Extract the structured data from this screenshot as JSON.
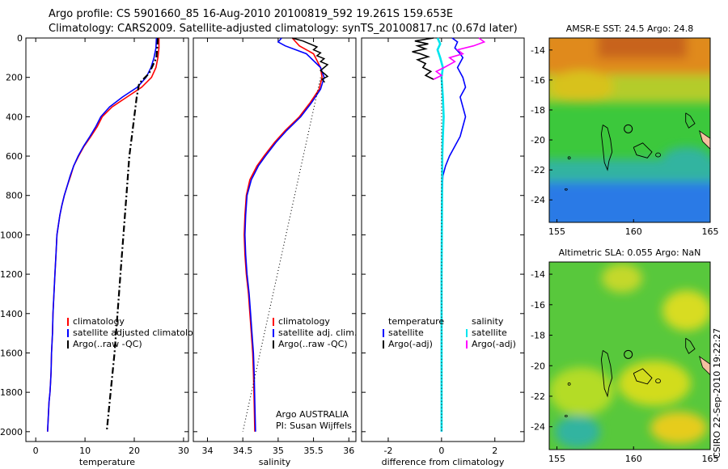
{
  "title": {
    "line1": "Argo profile: CS 5901660_85 16-Aug-2010 20100819_592 19.261S 159.653E",
    "line2": "Climatology: CARS2009. Satellite-adjusted climatology: synTS_20100817.nc (0.67d later)"
  },
  "footer": "CSIRO 22-Sep-2010 19:22:27",
  "colors": {
    "climatology": "#ff0000",
    "satellite": "#0000ff",
    "argo": "#000000",
    "sal_satellite": "#00e5ee",
    "sal_argo": "#ff00ff"
  },
  "chart_data": [
    {
      "type": "line",
      "panel": "temperature",
      "xlabel": "temperature",
      "ylabel": "",
      "xlim": [
        -2,
        31
      ],
      "ylim": [
        2050,
        0
      ],
      "xticks": [
        0,
        10,
        20,
        30
      ],
      "yticks": [
        0,
        200,
        400,
        600,
        800,
        1000,
        1200,
        1400,
        1600,
        1800,
        2000
      ],
      "legend": {
        "placement": "lower-right",
        "entries": [
          "climatology",
          "satellite adjusted climatology",
          "Argo(..raw -QC)"
        ]
      },
      "series": [
        {
          "name": "climatology",
          "color": "#ff0000",
          "style": "solid",
          "x": [
            25.0,
            25.0,
            24.8,
            24.4,
            23.5,
            21.5,
            18.5,
            15.5,
            13.5,
            12.5,
            11.2,
            9.8,
            8.7,
            7.7,
            7.1,
            6.4,
            5.8,
            5.3,
            4.9,
            4.6,
            4.3,
            4.1,
            3.9,
            3.7,
            3.5,
            3.4,
            3.2,
            3.1,
            3.0,
            2.9,
            2.7,
            2.6,
            2.5,
            2.4
          ],
          "y": [
            0,
            50,
            100,
            150,
            200,
            250,
            300,
            350,
            400,
            450,
            500,
            550,
            600,
            650,
            700,
            750,
            800,
            850,
            900,
            950,
            1000,
            1100,
            1200,
            1300,
            1400,
            1500,
            1600,
            1700,
            1750,
            1800,
            1850,
            1900,
            1950,
            2000
          ]
        },
        {
          "name": "satellite adjusted climatology",
          "color": "#0000ff",
          "style": "solid",
          "x": [
            24.5,
            24.4,
            24.0,
            23.4,
            22.4,
            20.6,
            17.6,
            15.0,
            13.2,
            12.2,
            11.0,
            9.7,
            8.6,
            7.7,
            7.0,
            6.4,
            5.8,
            5.3,
            4.9,
            4.6,
            4.3,
            4.1,
            3.9,
            3.7,
            3.5,
            3.4,
            3.2,
            3.1,
            3.0,
            2.9,
            2.7,
            2.6,
            2.5,
            2.4
          ],
          "y": [
            0,
            50,
            100,
            150,
            200,
            250,
            300,
            350,
            400,
            450,
            500,
            550,
            600,
            650,
            700,
            750,
            800,
            850,
            900,
            950,
            1000,
            1100,
            1200,
            1300,
            1400,
            1500,
            1600,
            1700,
            1750,
            1800,
            1850,
            1900,
            1950,
            2000
          ]
        },
        {
          "name": "Argo(..raw -QC)",
          "color": "#000000",
          "style": "dashdot",
          "x": [
            24.8,
            24.5,
            23.0,
            21.0,
            20.5,
            20.0,
            19.5,
            19.0,
            18.4,
            17.8,
            17.2,
            16.6,
            16.0,
            14.4
          ],
          "y": [
            0,
            100,
            180,
            230,
            300,
            400,
            500,
            600,
            800,
            1000,
            1200,
            1400,
            1600,
            2000
          ]
        }
      ]
    },
    {
      "type": "line",
      "panel": "salinity",
      "xlabel": "salinity",
      "ylabel": "",
      "xlim": [
        33.8,
        36.1
      ],
      "ylim": [
        2050,
        0
      ],
      "xticks": [
        34,
        34.5,
        35,
        35.5,
        36
      ],
      "legend": {
        "placement": "lower-right",
        "entries": [
          "climatology",
          "satellite adj. clim.",
          "Argo(..raw -QC)"
        ]
      },
      "annotation": [
        "Argo AUSTRALIA",
        "PI: Susan Wijffels"
      ],
      "series": [
        {
          "name": "climatology",
          "color": "#ff0000",
          "style": "solid",
          "x": [
            35.2,
            35.25,
            35.3,
            35.5,
            35.6,
            35.62,
            35.58,
            35.45,
            35.3,
            35.1,
            34.95,
            34.8,
            34.7,
            34.6,
            34.55,
            34.53,
            34.52,
            34.53,
            34.55,
            34.58,
            34.6,
            34.62,
            34.64,
            34.65,
            34.66,
            34.67
          ],
          "y": [
            0,
            20,
            40,
            80,
            150,
            200,
            260,
            330,
            400,
            470,
            530,
            600,
            650,
            720,
            800,
            900,
            1000,
            1100,
            1200,
            1300,
            1400,
            1500,
            1600,
            1700,
            1850,
            2000
          ]
        },
        {
          "name": "satellite adj. clim.",
          "color": "#0000ff",
          "style": "solid",
          "x": [
            35.05,
            35.0,
            35.1,
            35.4,
            35.6,
            35.65,
            35.6,
            35.47,
            35.32,
            35.12,
            34.97,
            34.82,
            34.72,
            34.62,
            34.56,
            34.54,
            34.53,
            34.54,
            34.56,
            34.59,
            34.61,
            34.63,
            34.65,
            34.66,
            34.67,
            34.68
          ],
          "y": [
            0,
            20,
            40,
            80,
            150,
            200,
            260,
            330,
            400,
            470,
            530,
            600,
            650,
            720,
            800,
            900,
            1000,
            1100,
            1200,
            1300,
            1400,
            1500,
            1600,
            1700,
            1850,
            2000
          ]
        },
        {
          "name": "Argo(..raw -QC)",
          "color": "#000000",
          "style": "jagged",
          "x": [
            35.2,
            35.35,
            35.45,
            35.55,
            35.5,
            35.6,
            35.55,
            35.65,
            35.6,
            35.7,
            35.65,
            35.6,
            35.65,
            35.7,
            35.62,
            35.66
          ],
          "y": [
            0,
            15,
            30,
            45,
            60,
            75,
            90,
            105,
            120,
            135,
            150,
            165,
            180,
            195,
            210,
            225
          ]
        },
        {
          "name": "",
          "color": "#000000",
          "style": "dotted",
          "x": [
            35.6,
            34.5
          ],
          "y": [
            200,
            2000
          ]
        }
      ]
    },
    {
      "type": "line",
      "panel": "difference",
      "xlabel": "difference from climatology",
      "ylabel": "",
      "xlim": [
        -3,
        3.1
      ],
      "ylim": [
        2050,
        0
      ],
      "xticks": [
        -2,
        0,
        2
      ],
      "legend": {
        "placement": "lower-center",
        "temperature_title": "temperature",
        "salinity_title": "salinity",
        "entries": [
          "satellite",
          "Argo(-adj)",
          "satellite",
          "Argo(-adj)"
        ]
      },
      "series": [
        {
          "name": "temperature satellite",
          "color": "#0000ff",
          "style": "solid",
          "x": [
            0.4,
            0.6,
            0.5,
            0.7,
            0.8,
            0.6,
            0.8,
            0.9,
            0.7,
            0.8,
            0.9,
            0.8,
            0.7,
            0.5,
            0.3,
            0.15,
            0.05,
            0.02,
            0.0,
            0.0
          ],
          "y": [
            0,
            20,
            50,
            80,
            100,
            150,
            200,
            250,
            300,
            350,
            400,
            450,
            500,
            550,
            600,
            650,
            700,
            800,
            1000,
            2000
          ]
        },
        {
          "name": "temperature Argo(-adj)",
          "color": "#000000",
          "style": "solid",
          "x": [
            -0.3,
            -1.0,
            -0.5,
            -0.9,
            -0.6,
            -1.1,
            -0.8,
            -0.5,
            -0.9,
            -0.6,
            -0.7,
            -0.4,
            -0.6,
            -0.3
          ],
          "y": [
            0,
            15,
            30,
            40,
            55,
            70,
            80,
            95,
            110,
            130,
            150,
            170,
            190,
            210
          ]
        },
        {
          "name": "salinity satellite",
          "color": "#00e5ee",
          "style": "solid",
          "x": [
            -0.15,
            -0.05,
            -0.15,
            -0.05,
            0.05,
            0.0,
            0.05,
            0.08,
            0.05,
            0.03,
            0.02,
            0.0,
            0.0
          ],
          "y": [
            0,
            30,
            60,
            100,
            150,
            200,
            300,
            400,
            500,
            600,
            800,
            1200,
            2000
          ]
        },
        {
          "name": "salinity Argo(-adj)",
          "color": "#ff00ff",
          "style": "solid",
          "x": [
            1.4,
            1.6,
            1.2,
            0.6,
            0.8,
            0.3,
            0.5,
            0.1,
            -0.2,
            0.0,
            -0.3
          ],
          "y": [
            0,
            20,
            40,
            60,
            80,
            100,
            120,
            150,
            170,
            190,
            210
          ]
        },
        {
          "name": "",
          "color": "#000000",
          "style": "dotted",
          "x": [
            0.0,
            0.0
          ],
          "y": [
            200,
            2000
          ]
        }
      ]
    },
    {
      "type": "heatmap",
      "panel": "sst-map",
      "title": "AMSR-E SST: 24.5 Argo: 24.8",
      "xlim": [
        154.5,
        165
      ],
      "ylim": [
        -25.5,
        -13.2
      ],
      "xticks": [
        155,
        160,
        165
      ],
      "yticks": [
        -14,
        -16,
        -18,
        -20,
        -22,
        -24
      ],
      "marker": {
        "lon": 159.653,
        "lat": -19.261
      }
    },
    {
      "type": "heatmap",
      "panel": "sla-map",
      "title": "Altimetric SLA: 0.055 Argo: NaN",
      "xlim": [
        154.5,
        165
      ],
      "ylim": [
        -25.5,
        -13.2
      ],
      "xticks": [
        155,
        160,
        165
      ],
      "yticks": [
        -14,
        -16,
        -18,
        -20,
        -22,
        -24
      ],
      "marker": {
        "lon": 159.653,
        "lat": -19.261
      }
    }
  ]
}
